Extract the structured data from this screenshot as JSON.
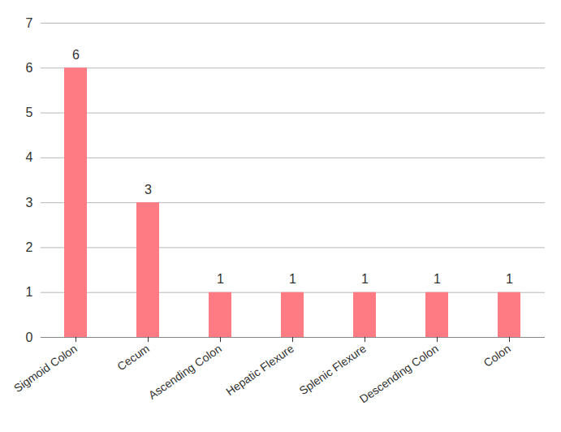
{
  "chart_data": {
    "type": "bar",
    "categories": [
      "Sigmoid Colon",
      "Cecum",
      "Ascending Colon",
      "Hepatic Flexure",
      "Splenic Flexure",
      "Descending Colon",
      "Colon"
    ],
    "values": [
      6,
      3,
      1,
      1,
      1,
      1,
      1
    ],
    "color": "#ff7b83",
    "ylim": [
      0,
      7
    ],
    "yticks": [
      0,
      1,
      2,
      3,
      4,
      5,
      6,
      7
    ],
    "grid": true,
    "data_labels": true
  }
}
